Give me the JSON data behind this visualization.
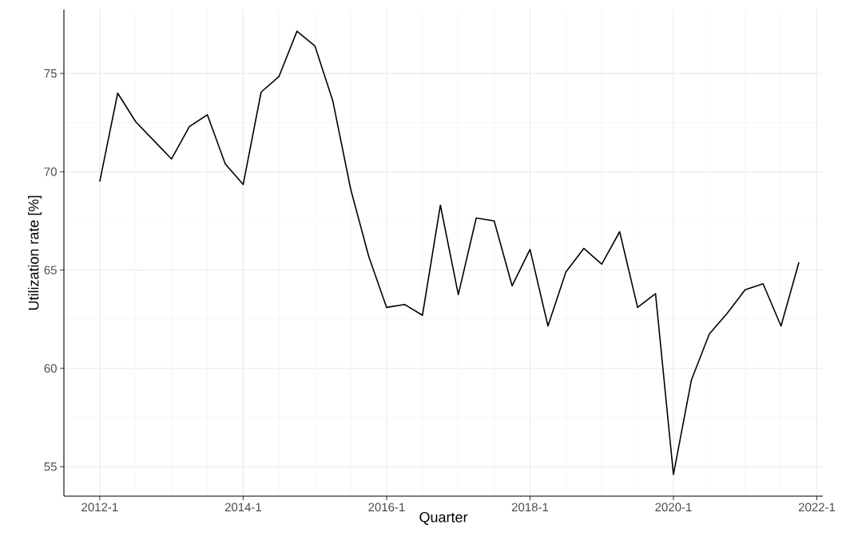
{
  "chart_data": {
    "type": "line",
    "xlabel": "Quarter",
    "ylabel": "Utilization rate [%]",
    "x": [
      "2012-01",
      "2012-04",
      "2012-07",
      "2012-10",
      "2013-01",
      "2013-04",
      "2013-07",
      "2013-10",
      "2014-01",
      "2014-04",
      "2014-07",
      "2014-10",
      "2015-01",
      "2015-04",
      "2015-07",
      "2015-10",
      "2016-01",
      "2016-04",
      "2016-07",
      "2016-10",
      "2017-01",
      "2017-04",
      "2017-07",
      "2017-10",
      "2018-01",
      "2018-04",
      "2018-07",
      "2018-10",
      "2019-01",
      "2019-04",
      "2019-07",
      "2019-10",
      "2020-01",
      "2020-04",
      "2020-07",
      "2020-10",
      "2021-01",
      "2021-04",
      "2021-07",
      "2021-10"
    ],
    "series": [
      {
        "color": "#000000",
        "values": [
          69.5,
          74.0,
          72.55,
          71.6,
          70.65,
          72.3,
          72.9,
          70.4,
          69.35,
          74.05,
          74.85,
          77.15,
          76.4,
          73.6,
          69.1,
          65.7,
          63.1,
          63.25,
          62.7,
          68.3,
          63.75,
          67.65,
          67.5,
          64.2,
          66.05,
          62.15,
          64.9,
          66.1,
          65.3,
          66.95,
          63.1,
          63.8,
          54.6,
          59.4,
          61.75,
          62.8,
          64.0,
          64.3,
          62.15,
          65.4
        ]
      }
    ],
    "xlim": [
      "2011-07",
      "2022-02"
    ],
    "ylim": [
      53.5,
      78.25
    ],
    "xticks": [
      {
        "value": "2012-01",
        "label": "2012-1"
      },
      {
        "value": "2014-01",
        "label": "2014-1"
      },
      {
        "value": "2016-01",
        "label": "2016-1"
      },
      {
        "value": "2018-01",
        "label": "2018-1"
      },
      {
        "value": "2020-01",
        "label": "2020-1"
      },
      {
        "value": "2022-01",
        "label": "2022-1"
      }
    ],
    "yticks": [
      55,
      60,
      65,
      70,
      75
    ],
    "grid": true,
    "marker": "none",
    "line_style": "solid"
  }
}
